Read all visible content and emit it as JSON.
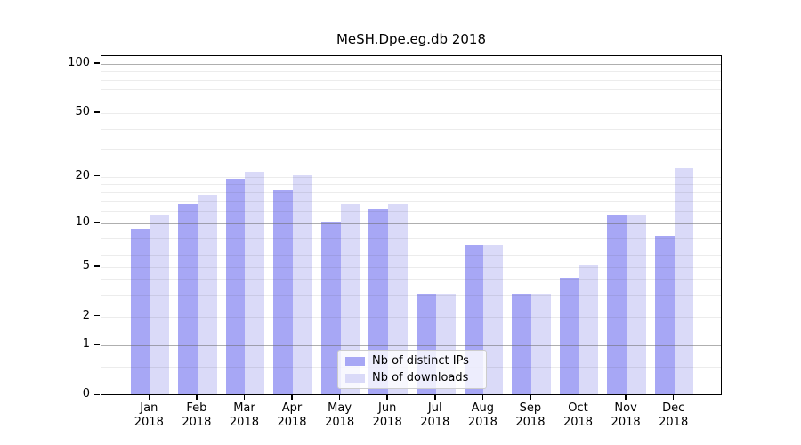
{
  "chart_data": {
    "type": "bar",
    "title": "MeSH.Dpe.eg.db 2018",
    "categories": [
      "Jan 2018",
      "Feb 2018",
      "Mar 2018",
      "Apr 2018",
      "May 2018",
      "Jun 2018",
      "Jul 2018",
      "Aug 2018",
      "Sep 2018",
      "Oct 2018",
      "Nov 2018",
      "Dec 2018"
    ],
    "x_tick_top": [
      "Jan",
      "Feb",
      "Mar",
      "Apr",
      "May",
      "Jun",
      "Jul",
      "Aug",
      "Sep",
      "Oct",
      "Nov",
      "Dec"
    ],
    "x_tick_bottom": [
      "2018",
      "2018",
      "2018",
      "2018",
      "2018",
      "2018",
      "2018",
      "2018",
      "2018",
      "2018",
      "2018",
      "2018"
    ],
    "series": [
      {
        "name": "Nb of distinct IPs",
        "color": "#a7a7f5",
        "values": [
          9,
          13,
          19,
          16,
          10,
          12,
          3,
          7,
          3,
          4,
          11,
          8
        ]
      },
      {
        "name": "Nb of downloads",
        "color": "#dadaf8",
        "values": [
          11,
          15,
          21,
          20,
          13,
          13,
          3,
          7,
          3,
          5,
          11,
          22
        ]
      }
    ],
    "y_axis": {
      "scale": "log10(1+v)",
      "ylim": [
        0,
        100
      ],
      "tick_values": [
        100,
        50,
        20,
        10,
        5,
        2,
        1,
        0
      ],
      "tick_labels": [
        "100",
        "50",
        "20",
        "10",
        "5",
        "2",
        "1",
        "0"
      ]
    },
    "gridlines": {
      "major": [
        1,
        10,
        100
      ],
      "minor": [
        0.5,
        2,
        3,
        4,
        5,
        6,
        7,
        8,
        9,
        12,
        14,
        16,
        18,
        20,
        30,
        40,
        50,
        60,
        70,
        80,
        90
      ]
    },
    "legend_position": "lower center",
    "grid": true,
    "colors": {
      "spine": "#000000",
      "major_grid": "#b0b0b0",
      "minor_grid": "#e8e8e8",
      "text": "#000000"
    }
  }
}
